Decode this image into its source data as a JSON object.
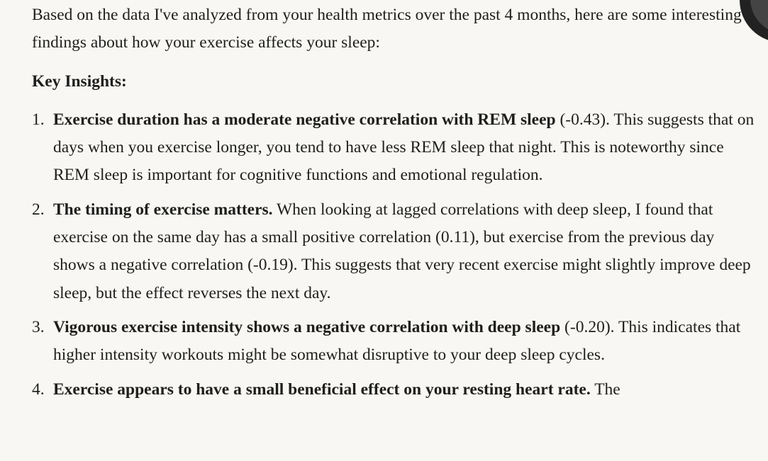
{
  "intro": "Based on the data I've analyzed from your health metrics over the past 4 months, here are some interesting findings about how your exercise affects your sleep:",
  "heading": "Key Insights:",
  "items": [
    {
      "number": "1.",
      "bold": "Exercise duration has a moderate negative correlation with REM sleep",
      "text": "(-0.43). This suggests that on days when you exercise longer, you tend to have less REM sleep that night. This is noteworthy since REM sleep is important for cognitive functions and emotional regulation."
    },
    {
      "number": "2.",
      "bold": "The timing of exercise matters.",
      "text": "When looking at lagged correlations with deep sleep, I found that exercise on the same day has a small positive correlation (0.11), but exercise from the previous day shows a negative correlation (-0.19). This suggests that very recent exercise might slightly improve deep sleep, but the effect reverses the next day."
    },
    {
      "number": "3.",
      "bold": "Vigorous exercise intensity shows a negative correlation with deep sleep",
      "text": "(-0.20). This indicates that higher intensity workouts might be somewhat disruptive to your deep sleep cycles."
    },
    {
      "number": "4.",
      "bold": "Exercise appears to have a small beneficial effect on your resting heart rate.",
      "text": "The"
    }
  ]
}
